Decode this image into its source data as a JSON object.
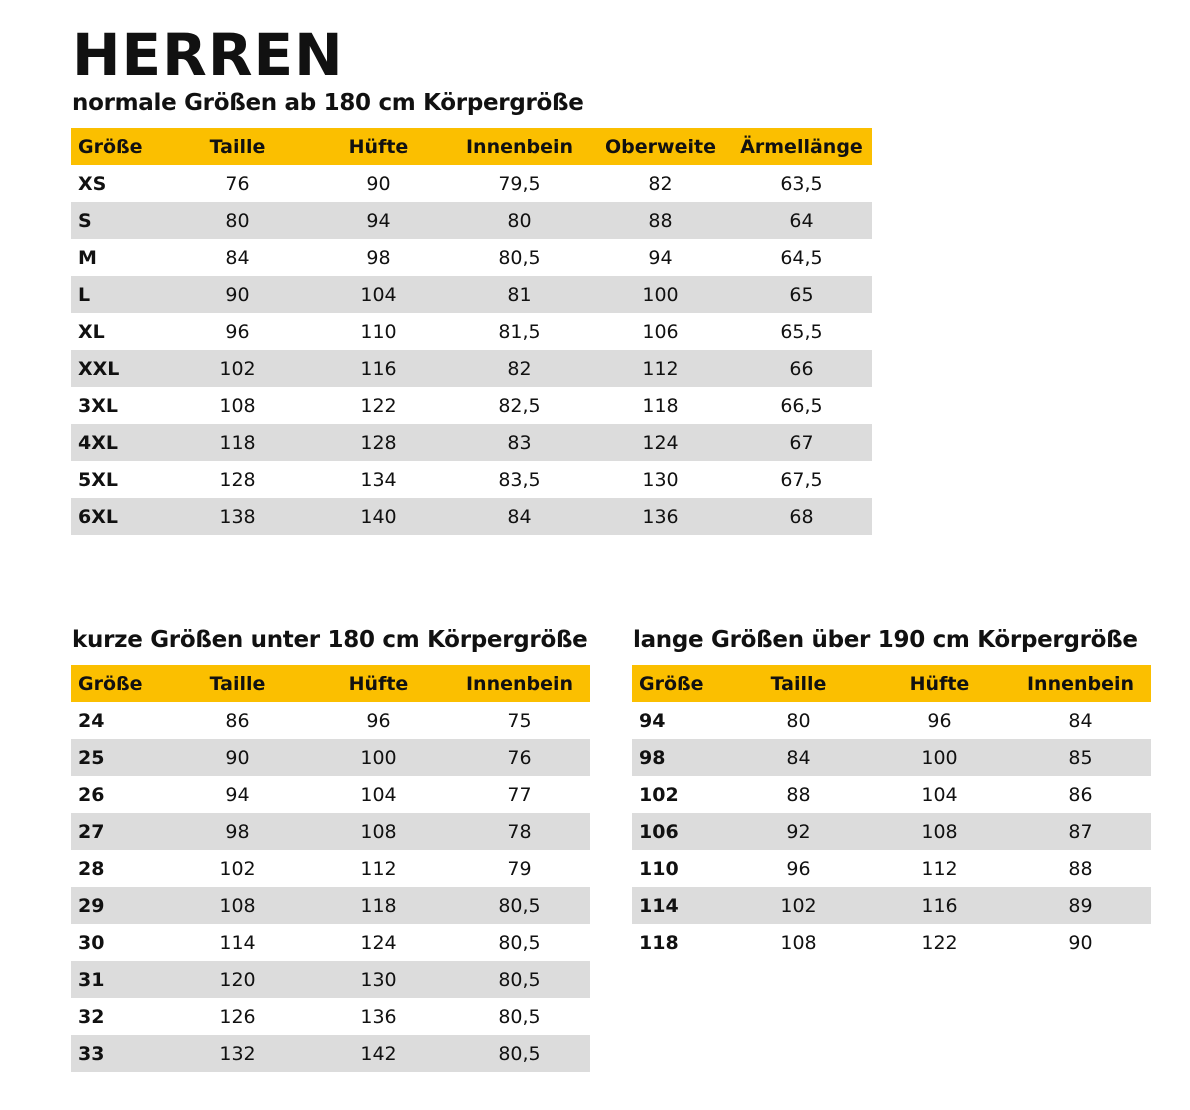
{
  "title": "HERREN",
  "colors": {
    "header": "#fbbf00",
    "stripe": "#dcdcdc"
  },
  "normal": {
    "heading": "normale Größen ab 180 cm Körpergröße",
    "columns": [
      "Größe",
      "Taille",
      "Hüfte",
      "Innenbein",
      "Oberweite",
      "Ärmellänge"
    ],
    "rows": [
      [
        "XS",
        "76",
        "90",
        "79,5",
        "82",
        "63,5"
      ],
      [
        "S",
        "80",
        "94",
        "80",
        "88",
        "64"
      ],
      [
        "M",
        "84",
        "98",
        "80,5",
        "94",
        "64,5"
      ],
      [
        "L",
        "90",
        "104",
        "81",
        "100",
        "65"
      ],
      [
        "XL",
        "96",
        "110",
        "81,5",
        "106",
        "65,5"
      ],
      [
        "XXL",
        "102",
        "116",
        "82",
        "112",
        "66"
      ],
      [
        "3XL",
        "108",
        "122",
        "82,5",
        "118",
        "66,5"
      ],
      [
        "4XL",
        "118",
        "128",
        "83",
        "124",
        "67"
      ],
      [
        "5XL",
        "128",
        "134",
        "83,5",
        "130",
        "67,5"
      ],
      [
        "6XL",
        "138",
        "140",
        "84",
        "136",
        "68"
      ]
    ]
  },
  "short": {
    "heading": "kurze Größen unter 180 cm Körpergröße",
    "columns": [
      "Größe",
      "Taille",
      "Hüfte",
      "Innenbein"
    ],
    "rows": [
      [
        "24",
        "86",
        "96",
        "75"
      ],
      [
        "25",
        "90",
        "100",
        "76"
      ],
      [
        "26",
        "94",
        "104",
        "77"
      ],
      [
        "27",
        "98",
        "108",
        "78"
      ],
      [
        "28",
        "102",
        "112",
        "79"
      ],
      [
        "29",
        "108",
        "118",
        "80,5"
      ],
      [
        "30",
        "114",
        "124",
        "80,5"
      ],
      [
        "31",
        "120",
        "130",
        "80,5"
      ],
      [
        "32",
        "126",
        "136",
        "80,5"
      ],
      [
        "33",
        "132",
        "142",
        "80,5"
      ]
    ]
  },
  "long": {
    "heading": "lange Größen über 190 cm Körpergröße",
    "columns": [
      "Größe",
      "Taille",
      "Hüfte",
      "Innenbein"
    ],
    "rows": [
      [
        "94",
        "80",
        "96",
        "84"
      ],
      [
        "98",
        "84",
        "100",
        "85"
      ],
      [
        "102",
        "88",
        "104",
        "86"
      ],
      [
        "106",
        "92",
        "108",
        "87"
      ],
      [
        "110",
        "96",
        "112",
        "88"
      ],
      [
        "114",
        "102",
        "116",
        "89"
      ],
      [
        "118",
        "108",
        "122",
        "90"
      ]
    ]
  }
}
